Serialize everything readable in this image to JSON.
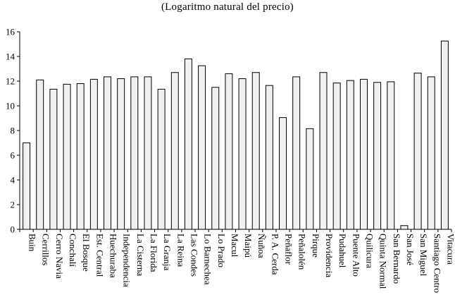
{
  "chart_data": {
    "type": "bar",
    "title": "(Logaritmo natural del precio)",
    "xlabel": "",
    "ylabel": "",
    "ylim": [
      0,
      16
    ],
    "yticks": [
      0,
      2,
      4,
      6,
      8,
      10,
      12,
      14,
      16
    ],
    "grid": false,
    "categories": [
      "Buin",
      "Cerrillos",
      "Cerro Navia",
      "Conchalí",
      "El Bosque",
      "Est. Central",
      "Huechuraba",
      "Independencia",
      "La Cisterna",
      "La Florida",
      "La Granja",
      "La Reina",
      "Las Condes",
      "Lo Barnechea",
      "Lo Prado",
      "Macul",
      "Maipú",
      "Ñuñoa",
      "P. A. Cerda",
      "Peñaflor",
      "Peñalolén",
      "Pirque",
      "Providencia",
      "Pudahuel",
      "Puente Alto",
      "Quilicura",
      "Quinta Normal",
      "San Bernardo",
      "San José",
      "San Miguel",
      "Santiago Centro",
      "Vitacura"
    ],
    "values": [
      7.0,
      12.1,
      11.35,
      11.75,
      11.8,
      12.15,
      12.35,
      12.2,
      12.35,
      12.35,
      11.35,
      12.7,
      13.8,
      13.25,
      11.5,
      12.6,
      12.2,
      12.7,
      11.65,
      9.05,
      12.35,
      8.15,
      12.7,
      11.85,
      12.05,
      12.15,
      11.9,
      11.95,
      0.3,
      12.65,
      12.35,
      15.25
    ]
  }
}
